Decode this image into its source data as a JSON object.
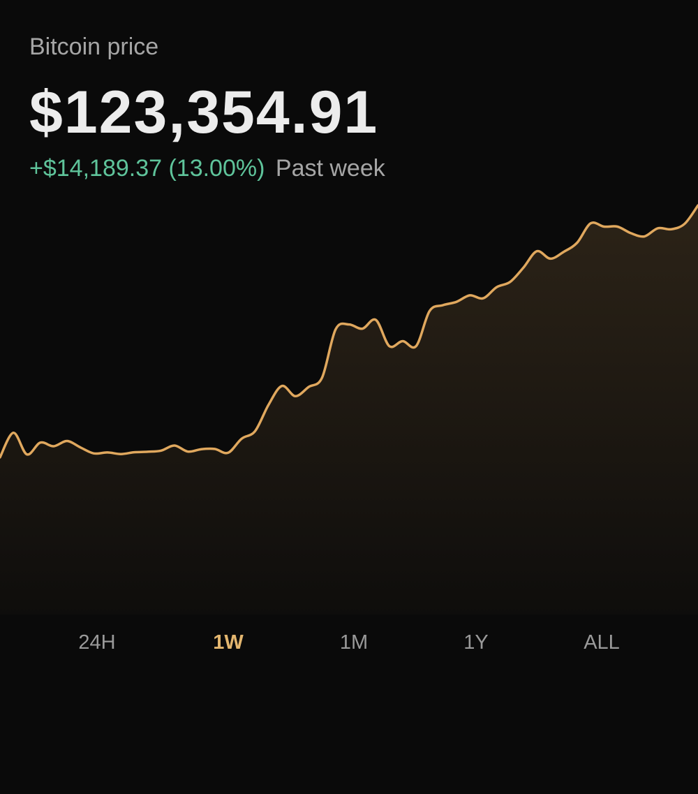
{
  "header": {
    "asset_label": "Bitcoin price",
    "price": "$123,354.91",
    "change_value": "+$14,189.37 (13.00%)",
    "change_period": "Past week"
  },
  "range_tabs": [
    {
      "label": "24H",
      "active": false
    },
    {
      "label": "1W",
      "active": true
    },
    {
      "label": "1M",
      "active": false
    },
    {
      "label": "1Y",
      "active": false
    },
    {
      "label": "ALL",
      "active": false
    }
  ],
  "colors": {
    "background": "#0a0a0a",
    "line": "#e0a85e",
    "positive": "#5fc49b",
    "active_tab": "#e3b66f"
  },
  "chart_data": {
    "type": "line",
    "title": "",
    "xlabel": "",
    "ylabel": "",
    "grid": false,
    "ylim": [
      100900,
      124800
    ],
    "series": [
      {
        "values": [
          108800,
          110300,
          108980,
          109700,
          109480,
          109800,
          109400,
          109040,
          109100,
          109000,
          109110,
          109140,
          109210,
          109520,
          109150,
          109300,
          109310,
          109080,
          109940,
          110400,
          112000,
          113160,
          112540,
          113100,
          113680,
          116620,
          116920,
          116660,
          117200,
          115600,
          115900,
          115600,
          117740,
          118100,
          118300,
          118700,
          118520,
          119200,
          119520,
          120400,
          121400,
          120940,
          121360,
          121920,
          123100,
          122900,
          122900,
          122500,
          122300,
          122800,
          122740,
          123070,
          124200
        ]
      }
    ]
  }
}
